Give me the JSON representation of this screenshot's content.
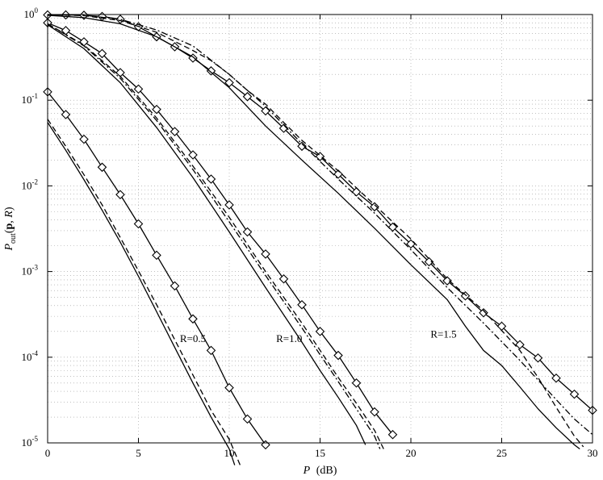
{
  "chart_data": {
    "type": "line",
    "title": "",
    "xlabel": {
      "var": "P",
      "unit": "(dB)"
    },
    "ylabel": {
      "base": "P",
      "sub": "out",
      "args": "(",
      "bold": "p",
      "comma": ", ",
      "ital": "R",
      "close": ")"
    },
    "xlim": [
      0,
      30
    ],
    "ylim": [
      1e-05,
      1
    ],
    "yscale": "log",
    "grid": true,
    "x_ticks": [
      "0",
      "5",
      "10",
      "15",
      "20",
      "25",
      "30"
    ],
    "y_ticks": [
      {
        "base": "10",
        "exp": "0"
      },
      {
        "base": "10",
        "exp": "-1"
      },
      {
        "base": "10",
        "exp": "-2"
      },
      {
        "base": "10",
        "exp": "-3"
      },
      {
        "base": "10",
        "exp": "-4"
      },
      {
        "base": "10",
        "exp": "-5"
      }
    ],
    "annotations": [
      {
        "text": "R=0.5",
        "x": 8.0,
        "y": 0.00015
      },
      {
        "text": "R=1.0",
        "x": 13.3,
        "y": 0.00015
      },
      {
        "text": "R=1.5",
        "x": 21.8,
        "y": 0.00017
      }
    ],
    "series": [
      {
        "group": "R=0.5",
        "style": "diamond",
        "points": [
          [
            0,
            0.125
          ],
          [
            1,
            0.068
          ],
          [
            2,
            0.035
          ],
          [
            3,
            0.0165
          ],
          [
            4,
            0.0079
          ],
          [
            5,
            0.0036
          ],
          [
            6,
            0.00155
          ],
          [
            7,
            0.00068
          ],
          [
            8,
            0.00028
          ],
          [
            9,
            0.00012
          ],
          [
            10,
            4.4e-05
          ],
          [
            11,
            1.9e-05
          ],
          [
            12,
            9.5e-06
          ]
        ]
      },
      {
        "group": "R=0.5",
        "style": "dashed",
        "points": [
          [
            0,
            0.06
          ],
          [
            1,
            0.029
          ],
          [
            2,
            0.0135
          ],
          [
            3,
            0.006
          ],
          [
            4,
            0.0025
          ],
          [
            5,
            0.00102
          ],
          [
            6,
            0.00041
          ],
          [
            7,
            0.00016
          ],
          [
            8,
            6.2e-05
          ],
          [
            9,
            2.4e-05
          ],
          [
            10,
            1.1e-05
          ],
          [
            10.6,
            5.5e-06
          ]
        ]
      },
      {
        "group": "R=0.5",
        "style": "solid",
        "points": [
          [
            0,
            0.055
          ],
          [
            1,
            0.026
          ],
          [
            2,
            0.0118
          ],
          [
            3,
            0.0052
          ],
          [
            4,
            0.0022
          ],
          [
            5,
            0.00088
          ],
          [
            6,
            0.00034
          ],
          [
            7,
            0.00013
          ],
          [
            8,
            5e-05
          ],
          [
            9,
            2e-05
          ],
          [
            10,
            8.5e-06
          ],
          [
            10.3,
            5.5e-06
          ]
        ]
      },
      {
        "group": "R=1.0",
        "style": "diamond",
        "points": [
          [
            0,
            0.8
          ],
          [
            1,
            0.65
          ],
          [
            2,
            0.48
          ],
          [
            3,
            0.35
          ],
          [
            4,
            0.21
          ],
          [
            5,
            0.135
          ],
          [
            6,
            0.078
          ],
          [
            7,
            0.043
          ],
          [
            8,
            0.023
          ],
          [
            9,
            0.012
          ],
          [
            10,
            0.006
          ],
          [
            11,
            0.0029
          ],
          [
            12,
            0.0016
          ],
          [
            13,
            0.00082
          ],
          [
            14,
            0.00041
          ],
          [
            15,
            0.0002
          ],
          [
            16,
            0.000105
          ],
          [
            17,
            5e-05
          ],
          [
            18,
            2.3e-05
          ],
          [
            19,
            1.25e-05
          ]
        ]
      },
      {
        "group": "R=1.0",
        "style": "dashed",
        "points": [
          [
            0,
            0.78
          ],
          [
            2,
            0.44
          ],
          [
            4,
            0.19
          ],
          [
            6,
            0.062
          ],
          [
            8,
            0.017
          ],
          [
            10,
            0.0043
          ],
          [
            12,
            0.001
          ],
          [
            14,
            0.00025
          ],
          [
            16,
            5.8e-05
          ],
          [
            17,
            2.9e-05
          ],
          [
            18,
            1.4e-05
          ],
          [
            18.5,
            8.5e-06
          ]
        ]
      },
      {
        "group": "R=1.0",
        "style": "dashdot",
        "points": [
          [
            0,
            0.78
          ],
          [
            2,
            0.43
          ],
          [
            4,
            0.18
          ],
          [
            6,
            0.058
          ],
          [
            8,
            0.0155
          ],
          [
            10,
            0.0038
          ],
          [
            12,
            0.0009
          ],
          [
            14,
            0.00022
          ],
          [
            16,
            5.2e-05
          ],
          [
            17,
            2.5e-05
          ],
          [
            18,
            1.2e-05
          ],
          [
            18.3,
            8.5e-06
          ]
        ]
      },
      {
        "group": "R=1.0",
        "style": "solid",
        "points": [
          [
            0,
            0.76
          ],
          [
            2,
            0.4
          ],
          [
            4,
            0.16
          ],
          [
            6,
            0.048
          ],
          [
            8,
            0.0125
          ],
          [
            10,
            0.0029
          ],
          [
            12,
            0.00065
          ],
          [
            14,
            0.00015
          ],
          [
            15,
            7e-05
          ],
          [
            16,
            3.4e-05
          ],
          [
            17,
            1.6e-05
          ],
          [
            17.5,
            9.5e-06
          ]
        ]
      },
      {
        "group": "R=1.5",
        "style": "diamond",
        "points": [
          [
            0,
            0.99
          ],
          [
            1,
            0.99
          ],
          [
            2,
            0.98
          ],
          [
            3,
            0.95
          ],
          [
            4,
            0.88
          ],
          [
            5,
            0.72
          ],
          [
            6,
            0.55
          ],
          [
            7,
            0.42
          ],
          [
            8,
            0.31
          ],
          [
            9,
            0.22
          ],
          [
            10,
            0.16
          ],
          [
            11,
            0.11
          ],
          [
            12,
            0.075
          ],
          [
            13,
            0.047
          ],
          [
            14,
            0.029
          ],
          [
            15,
            0.022
          ],
          [
            16,
            0.0137
          ],
          [
            17,
            0.0085
          ],
          [
            18,
            0.0057
          ],
          [
            19,
            0.0033
          ],
          [
            20,
            0.0021
          ],
          [
            21,
            0.0013
          ],
          [
            22,
            0.00078
          ],
          [
            23,
            0.00052
          ],
          [
            24,
            0.00033
          ],
          [
            25,
            0.00023
          ],
          [
            26,
            0.00014
          ],
          [
            27,
            9.8e-05
          ],
          [
            28,
            5.7e-05
          ],
          [
            29,
            3.7e-05
          ],
          [
            30,
            2.4e-05
          ]
        ]
      },
      {
        "group": "R=1.5",
        "style": "dashed",
        "points": [
          [
            0,
            1.0
          ],
          [
            2,
            0.97
          ],
          [
            4,
            0.85
          ],
          [
            6,
            0.62
          ],
          [
            8,
            0.38
          ],
          [
            9,
            0.29
          ],
          [
            10,
            0.2
          ],
          [
            11,
            0.13
          ],
          [
            12,
            0.09
          ],
          [
            13,
            0.055
          ],
          [
            14,
            0.034
          ],
          [
            16,
            0.015
          ],
          [
            18,
            0.006
          ],
          [
            20,
            0.0024
          ],
          [
            22,
            0.00082
          ],
          [
            24,
            0.00035
          ],
          [
            26,
            0.00012
          ],
          [
            27,
            5.8e-05
          ],
          [
            28,
            2.6e-05
          ],
          [
            29,
            1.2e-05
          ],
          [
            29.5,
            9e-06
          ]
        ]
      },
      {
        "group": "R=1.5",
        "style": "dashdot",
        "points": [
          [
            0,
            1.0
          ],
          [
            2,
            0.98
          ],
          [
            4,
            0.88
          ],
          [
            6,
            0.66
          ],
          [
            8,
            0.43
          ],
          [
            10,
            0.2
          ],
          [
            12,
            0.085
          ],
          [
            14,
            0.031
          ],
          [
            16,
            0.012
          ],
          [
            18,
            0.0048
          ],
          [
            20,
            0.0018
          ],
          [
            22,
            0.00065
          ],
          [
            24,
            0.00025
          ],
          [
            26,
            9.2e-05
          ],
          [
            28,
            3.2e-05
          ],
          [
            29,
            1.9e-05
          ],
          [
            30,
            1.25e-05
          ]
        ]
      },
      {
        "group": "R=1.5",
        "style": "solid",
        "points": [
          [
            0,
            0.98
          ],
          [
            2,
            0.92
          ],
          [
            4,
            0.78
          ],
          [
            6,
            0.55
          ],
          [
            8,
            0.32
          ],
          [
            10,
            0.14
          ],
          [
            12,
            0.05
          ],
          [
            14,
            0.02
          ],
          [
            16,
            0.0082
          ],
          [
            18,
            0.0032
          ],
          [
            20,
            0.0012
          ],
          [
            22,
            0.00047
          ],
          [
            23,
            0.00023
          ],
          [
            24,
            0.00012
          ],
          [
            25,
            8e-05
          ],
          [
            26,
            4.5e-05
          ],
          [
            27,
            2.5e-05
          ],
          [
            28,
            1.5e-05
          ],
          [
            29,
            9.5e-06
          ],
          [
            29.3,
            8.5e-06
          ]
        ]
      }
    ]
  }
}
